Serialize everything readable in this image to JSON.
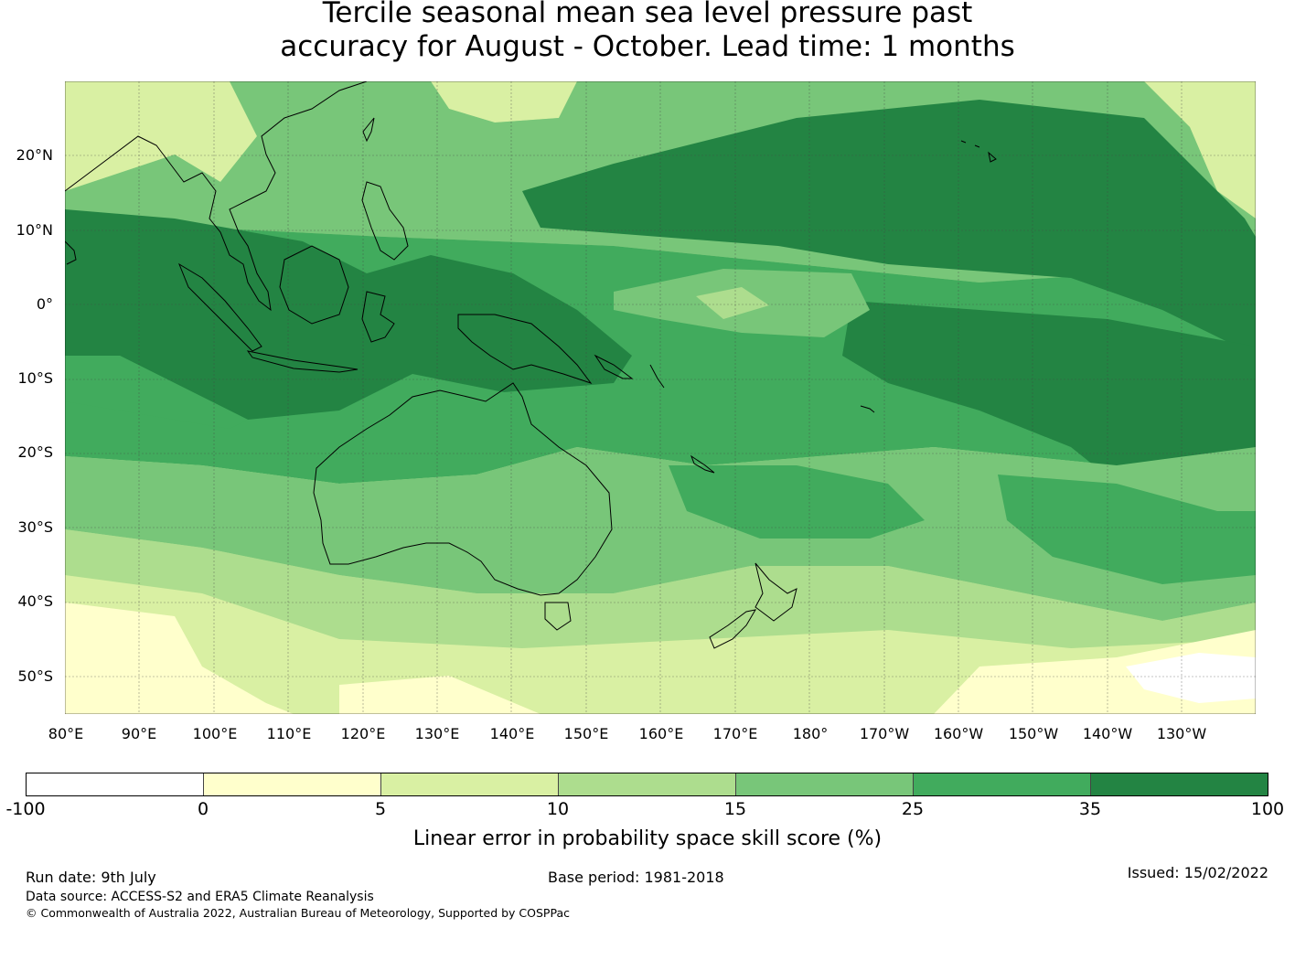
{
  "title": {
    "line1": "Tercile seasonal mean sea level pressure past",
    "line2": "accuracy for August - October. Lead time: 1 months"
  },
  "map": {
    "latitude_labels": [
      "20°N",
      "10°N",
      "0°",
      "10°S",
      "20°S",
      "30°S",
      "40°S",
      "50°S"
    ],
    "longitude_labels": [
      "80°E",
      "90°E",
      "100°E",
      "110°E",
      "120°E",
      "130°E",
      "140°E",
      "150°E",
      "160°E",
      "170°E",
      "180°",
      "170°W",
      "160°W",
      "150°W",
      "140°W",
      "130°W"
    ],
    "gridlines": true
  },
  "colorbar": {
    "labels": [
      "-100",
      "0",
      "5",
      "10",
      "15",
      "25",
      "35",
      "100"
    ],
    "colors": [
      "#ffffff",
      "#ffffcc",
      "#d9f0a3",
      "#addd8e",
      "#78c679",
      "#41ab5d",
      "#238443"
    ],
    "title": "Linear error in probability space skill score (%)"
  },
  "footer": {
    "run_date": "Run date: 9th July",
    "base_period": "Base period: 1981-2018",
    "issued": "Issued: 15/02/2022",
    "data_source": "Data source: ACCESS-S2 and ERA5 Climate Reanalysis",
    "copyright": "© Commonwealth of Australia 2022, Australian Bureau of Meteorology, Supported by COSPPac"
  }
}
